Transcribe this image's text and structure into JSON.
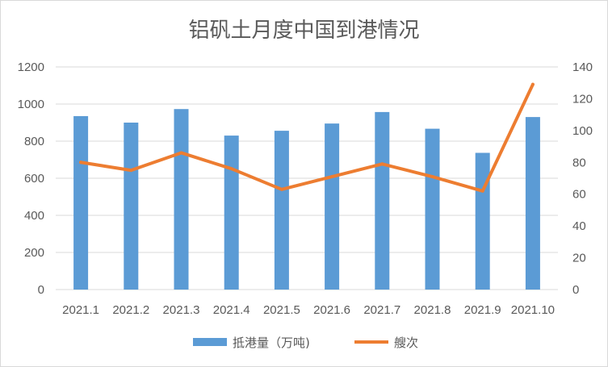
{
  "chart_data": {
    "type": "bar",
    "title": "铝矾土月度中国到港情况",
    "categories": [
      "2021.1",
      "2021.2",
      "2021.3",
      "2021.4",
      "2021.5",
      "2021.6",
      "2021.7",
      "2021.8",
      "2021.9",
      "2021.10"
    ],
    "series": [
      {
        "name": "抵港量（万吨)",
        "type": "bar",
        "axis": "left",
        "color": "#5b9bd5",
        "values": [
          935,
          900,
          973,
          830,
          856,
          895,
          957,
          867,
          737,
          930
        ]
      },
      {
        "name": "艘次",
        "type": "line",
        "axis": "right",
        "color": "#ed7d31",
        "values": [
          80,
          75,
          86,
          76,
          63,
          71,
          79,
          71,
          62,
          129
        ]
      }
    ],
    "y_left": {
      "min": 0,
      "max": 1200,
      "ticks": [
        "0",
        "200",
        "400",
        "600",
        "800",
        "1000",
        "1200"
      ]
    },
    "y_right": {
      "min": 0,
      "max": 140,
      "ticks": [
        "0",
        "20",
        "40",
        "60",
        "80",
        "100",
        "120",
        "140"
      ]
    },
    "grid": true,
    "legend_position": "bottom"
  }
}
